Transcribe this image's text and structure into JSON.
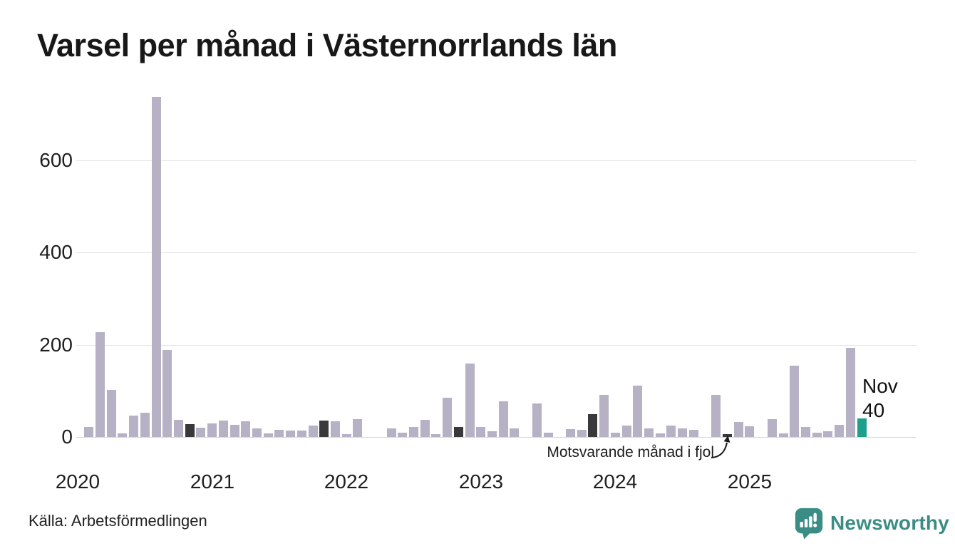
{
  "title": "Varsel per månad i Västernorrlands län",
  "source": "Källa: Arbetsförmedlingen",
  "annotation": "Motsvarande månad i fjol",
  "current_label": {
    "month": "Nov",
    "value": "40"
  },
  "logo": {
    "name": "Newsworthy"
  },
  "colors": {
    "bar": "#b6b1c5",
    "dark_bar": "#39393b",
    "accent_bar": "#1e9e8c",
    "logo": "#3a8d85",
    "grid": "#e5e3e8",
    "axis_line": "#d6d4db",
    "text": "#1c1c1c"
  },
  "y_axis": {
    "ticks": [
      0,
      200,
      400,
      600
    ]
  },
  "x_axis": {
    "years": [
      "2020",
      "2021",
      "2022",
      "2023",
      "2024",
      "2025"
    ]
  },
  "chart_data": {
    "type": "bar",
    "title": "Varsel per månad i Västernorrlands län",
    "xlabel": "",
    "ylabel": "",
    "ylim": [
      0,
      760
    ],
    "y_ticks": [
      0,
      200,
      400,
      600
    ],
    "grid": true,
    "legend": "none",
    "annotation_target_month": "2024-11",
    "x_months": [
      "2020-01",
      "2020-02",
      "2020-03",
      "2020-04",
      "2020-05",
      "2020-06",
      "2020-07",
      "2020-08",
      "2020-09",
      "2020-10",
      "2020-11",
      "2020-12",
      "2021-01",
      "2021-02",
      "2021-03",
      "2021-04",
      "2021-05",
      "2021-06",
      "2021-07",
      "2021-08",
      "2021-09",
      "2021-10",
      "2021-11",
      "2021-12",
      "2022-01",
      "2022-02",
      "2022-03",
      "2022-04",
      "2022-05",
      "2022-06",
      "2022-07",
      "2022-08",
      "2022-09",
      "2022-10",
      "2022-11",
      "2022-12",
      "2023-01",
      "2023-02",
      "2023-03",
      "2023-04",
      "2023-05",
      "2023-06",
      "2023-07",
      "2023-08",
      "2023-09",
      "2023-10",
      "2023-11",
      "2023-12",
      "2024-01",
      "2024-02",
      "2024-03",
      "2024-04",
      "2024-05",
      "2024-06",
      "2024-07",
      "2024-08",
      "2024-09",
      "2024-10",
      "2024-11",
      "2024-12",
      "2025-01",
      "2025-02",
      "2025-03",
      "2025-04",
      "2025-05",
      "2025-06",
      "2025-07",
      "2025-08",
      "2025-09",
      "2025-10",
      "2025-11"
    ],
    "values": [
      0,
      22,
      227,
      102,
      8,
      47,
      52,
      737,
      189,
      37,
      28,
      20,
      30,
      35,
      26,
      34,
      19,
      7,
      15,
      14,
      14,
      25,
      36,
      34,
      6,
      38,
      0,
      0,
      18,
      10,
      21,
      37,
      6,
      85,
      21,
      160,
      21,
      13,
      77,
      19,
      0,
      72,
      9,
      0,
      17,
      15,
      50,
      92,
      10,
      24,
      112,
      19,
      7,
      25,
      19,
      15,
      0,
      92,
      6,
      32,
      23,
      0,
      38,
      8,
      154,
      22,
      9,
      12,
      26,
      194,
      40
    ],
    "last_year_highlight_indices": [
      10,
      22,
      34,
      46,
      58
    ],
    "current_index": 70
  }
}
